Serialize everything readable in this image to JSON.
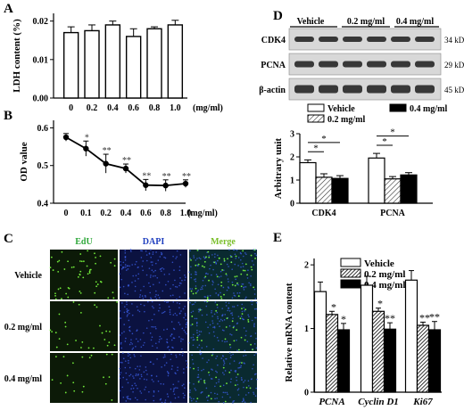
{
  "chart_data": [
    {
      "panel": "A",
      "type": "bar",
      "categories": [
        "0",
        "0.2",
        "0.4",
        "0.6",
        "0.8",
        "1.0"
      ],
      "values": [
        0.017,
        0.0175,
        0.019,
        0.016,
        0.018,
        0.019
      ],
      "errors": [
        0.0015,
        0.0015,
        0.001,
        0.002,
        0.0005,
        0.0012
      ],
      "ylabel": "LDH content (%)",
      "xunit": "(mg/ml)",
      "ylim": [
        0,
        0.022
      ],
      "yticks": [
        "0.00",
        "0.01",
        "0.02"
      ],
      "ytick_values": [
        0,
        0.01,
        0.02
      ]
    },
    {
      "panel": "B",
      "type": "line",
      "x": [
        "0",
        "0.1",
        "0.2",
        "0.4",
        "0.6",
        "0.8",
        "1.0"
      ],
      "values": [
        0.575,
        0.545,
        0.505,
        0.492,
        0.448,
        0.447,
        0.452
      ],
      "errors": [
        0.01,
        0.02,
        0.025,
        0.012,
        0.015,
        0.015,
        0.01
      ],
      "marks": [
        "",
        "*",
        "**",
        "**",
        "**",
        "**",
        "**"
      ],
      "ylabel": "OD value",
      "xunit": "(mg/ml)",
      "ylim": [
        0.4,
        0.62
      ],
      "yticks": [
        "0.4",
        "0.5",
        "0.6"
      ],
      "ytick_values": [
        0.4,
        0.5,
        0.6
      ]
    },
    {
      "panel": "C",
      "type": "image-grid",
      "columns": [
        "EdU",
        "DAPI",
        "Merge"
      ],
      "column_colors": [
        "#2fa83a",
        "#1f3fbf",
        "#7abf2a"
      ],
      "rows": [
        "Vehicle",
        "0.2 mg/ml",
        "0.4 mg/ml"
      ]
    },
    {
      "panel": "D",
      "type": "blot-and-bar",
      "blot": {
        "lanes": [
          "Vehicle",
          "0.2 mg/ml",
          "0.4 mg/ml"
        ],
        "rows": [
          {
            "label": "CDK4",
            "size": "34 kDa"
          },
          {
            "label": "PCNA",
            "size": "29 kDa"
          },
          {
            "label": "β-actin",
            "size": "45 kDa"
          }
        ]
      },
      "categories": [
        "CDK4",
        "PCNA"
      ],
      "series": [
        {
          "name": "Vehicle",
          "values": [
            1.75,
            1.95
          ],
          "errors": [
            0.12,
            0.2
          ]
        },
        {
          "name": "0.2 mg/ml",
          "values": [
            1.12,
            1.05
          ],
          "errors": [
            0.15,
            0.1
          ]
        },
        {
          "name": "0.4 mg/ml",
          "values": [
            1.07,
            1.22
          ],
          "errors": [
            0.12,
            0.1
          ]
        }
      ],
      "significance": [
        "*",
        "*",
        "*",
        "*"
      ],
      "ylabel": "Arbitrary unit",
      "ylim": [
        0,
        3
      ],
      "yticks": [
        "0",
        "1",
        "2",
        "3"
      ],
      "ytick_values": [
        0,
        1,
        2,
        3
      ]
    },
    {
      "panel": "E",
      "type": "bar",
      "categories": [
        "PCNA",
        "Cyclin D1",
        "Ki67"
      ],
      "series": [
        {
          "name": "Vehicle",
          "values": [
            1.58,
            1.68,
            1.76
          ],
          "errors": [
            0.15,
            0.14,
            0.15
          ]
        },
        {
          "name": "0.2 mg/ml",
          "values": [
            1.22,
            1.27,
            1.05
          ],
          "errors": [
            0.05,
            0.05,
            0.05
          ]
        },
        {
          "name": "0.4 mg/ml",
          "values": [
            0.98,
            0.99,
            0.98
          ],
          "errors": [
            0.1,
            0.1,
            0.13
          ]
        }
      ],
      "marks": [
        [
          "",
          "*",
          "*"
        ],
        [
          "",
          "*",
          "**"
        ],
        [
          "",
          "**",
          "**"
        ]
      ],
      "ylabel": "Relative mRNA content",
      "ylim": [
        0,
        2.1
      ],
      "yticks": [
        "0",
        "1",
        "2"
      ],
      "ytick_values": [
        0,
        1,
        2
      ]
    }
  ]
}
